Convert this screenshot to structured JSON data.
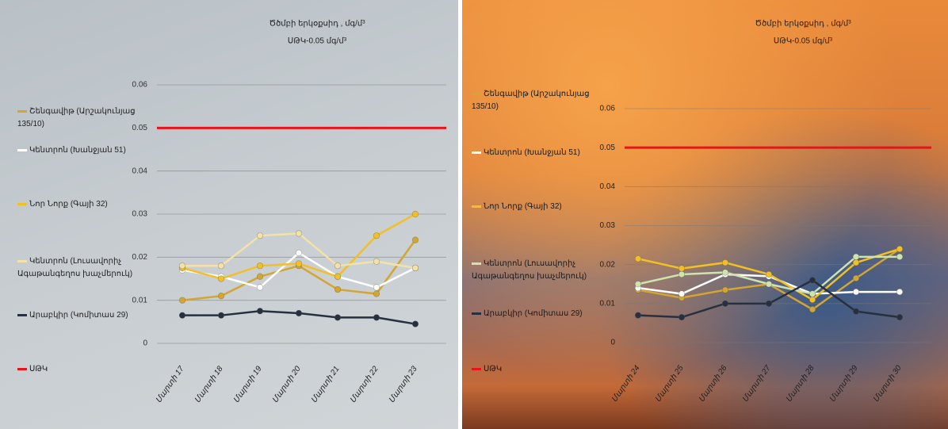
{
  "chart_data": [
    {
      "type": "line",
      "title": "Ծծմբի երկօքսիդ , մգ/մ³",
      "subtitle": "ՍԹԿ-0.05 մգ/մ³",
      "categories": [
        "Մարտի 17",
        "Մարտի 18",
        "Մարտի 19",
        "Մարտի 20",
        "Մարտի 21",
        "Մարտի 22",
        "Մարտի 23"
      ],
      "series": [
        {
          "name": "Շենգավիթ (Արշակունյաց 135/10)",
          "color": "#d2a630",
          "values": [
            0.01,
            0.011,
            0.0155,
            0.018,
            0.0125,
            0.0115,
            0.024
          ]
        },
        {
          "name": "Կենտրոն (Խանջյան 51)",
          "color": "#ffffff",
          "values": [
            0.017,
            0.0155,
            0.013,
            0.021,
            0.0155,
            0.013,
            0.0175
          ]
        },
        {
          "name": "Նոր Նորք (Գայի 32)",
          "color": "#f2c024",
          "values": [
            0.0175,
            0.015,
            0.018,
            0.0185,
            0.0155,
            0.025,
            0.03
          ]
        },
        {
          "name": "Կենտրոն (Լուսավորիչ Ագաթանգեղոս խաչմերուկ)",
          "color": "#f3e2a8",
          "values": [
            0.018,
            0.018,
            0.025,
            0.0255,
            0.018,
            0.019,
            0.0175
          ]
        },
        {
          "name": "Արաբկիր (Կոմիտաս 29)",
          "color": "#27303f",
          "values": [
            0.0065,
            0.0065,
            0.0075,
            0.007,
            0.006,
            0.006,
            0.0045
          ]
        },
        {
          "name": "ՍԹԿ",
          "color": "#e8141a",
          "values": [
            0.05,
            0.05,
            0.05,
            0.05,
            0.05,
            0.05,
            0.05
          ]
        }
      ],
      "ylim": [
        0,
        0.06
      ],
      "yticks": [
        0,
        0.01,
        0.02,
        0.03,
        0.04,
        0.05,
        0.06
      ],
      "grid": true
    },
    {
      "type": "line",
      "title": "Ծծմբի երկօքսիդ , մգ/մ³",
      "subtitle": "ՍԹԿ-0.05 մգ/մ³",
      "categories": [
        "Մարտի 24",
        "Մարտի 25",
        "Մարտի 26",
        "Մարտի 27",
        "Մարտի 28",
        "Մարտի 29",
        "Մարտի 30"
      ],
      "series": [
        {
          "name": "Շենգավիթ (Արշակունյաց 135/10)",
          "color": "#d2a630",
          "values": [
            0.0135,
            0.0115,
            0.0135,
            0.015,
            0.0085,
            0.0165,
            0.024
          ]
        },
        {
          "name": "Կենտրոն (Խանջյան 51)",
          "color": "#ffffff",
          "values": [
            0.014,
            0.0125,
            0.0175,
            0.017,
            0.0125,
            0.013,
            0.013
          ]
        },
        {
          "name": "Նոր Նորք (Գայի 32)",
          "color": "#f2c024",
          "values": [
            0.0215,
            0.019,
            0.0205,
            0.0175,
            0.011,
            0.0205,
            0.024
          ]
        },
        {
          "name": "Կենտրոն (Լուսավորիչ Ագաթանգեղոս խաչմերուկ)",
          "color": "#cfe3b0",
          "values": [
            0.015,
            0.0175,
            0.018,
            0.015,
            0.0125,
            0.022,
            0.022
          ]
        },
        {
          "name": "Արաբկիր (Կոմիտաս 29)",
          "color": "#27303f",
          "values": [
            0.007,
            0.0065,
            0.01,
            0.01,
            0.016,
            0.008,
            0.0065
          ]
        },
        {
          "name": "ՍԹԿ",
          "color": "#e8141a",
          "values": [
            0.05,
            0.05,
            0.05,
            0.05,
            0.05,
            0.05,
            0.05
          ]
        }
      ],
      "ylim": [
        0,
        0.06
      ],
      "yticks": [
        0,
        0.01,
        0.02,
        0.03,
        0.04,
        0.05,
        0.06
      ],
      "grid": true
    }
  ]
}
